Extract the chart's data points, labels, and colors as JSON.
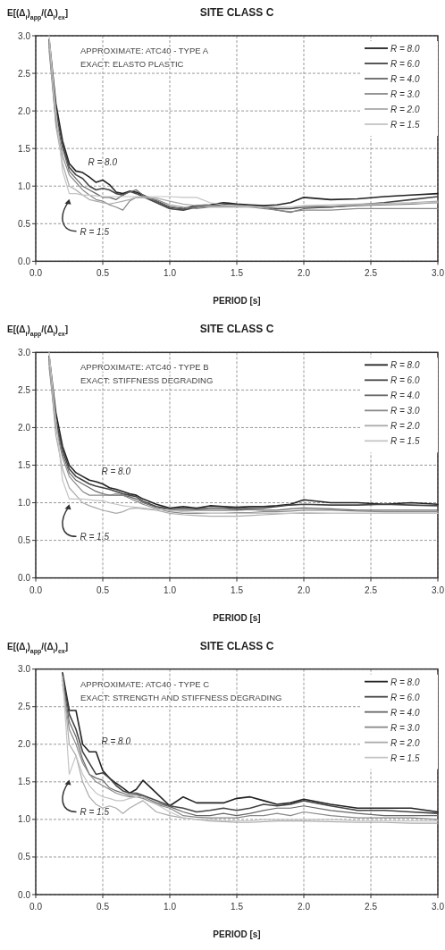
{
  "chart_data": [
    {
      "type": "line",
      "title": "SITE CLASS C",
      "xlabel": "PERIOD [s]",
      "ylabel": "E[(Δ$_{i}$)$_{app}$/(Δ$_{i}$)$_{ex}$]",
      "xlim": [
        0,
        3
      ],
      "ylim": [
        0,
        3
      ],
      "xticks": [
        {
          "value": 0,
          "label": "0.0"
        },
        {
          "value": 0.5,
          "label": "0.5"
        },
        {
          "value": 1,
          "label": "1.0"
        },
        {
          "value": 1.5,
          "label": "1.5"
        },
        {
          "value": 2,
          "label": "2.0"
        },
        {
          "value": 2.5,
          "label": "2.5"
        },
        {
          "value": 3,
          "label": "3.0"
        }
      ],
      "yticks": [
        {
          "value": 0,
          "label": "0.0"
        },
        {
          "value": 0.5,
          "label": "0.5"
        },
        {
          "value": 1,
          "label": "1.0"
        },
        {
          "value": 1.5,
          "label": "1.5"
        },
        {
          "value": 2,
          "label": "2.0"
        },
        {
          "value": 2.5,
          "label": "2.5"
        },
        {
          "value": 3,
          "label": "3.0"
        }
      ],
      "grid": true,
      "legend": "top right",
      "line_style": "solid",
      "annotations": [
        "APPROXIMATE: ATC40 - TYPE A",
        "EXACT: ELASTO PLASTIC",
        {
          "text": "R = 8.0",
          "x": 0.35,
          "y": 1.18
        },
        {
          "text": "R = 1.5",
          "x": 0.25,
          "y": 0.9
        }
      ],
      "x": [
        0.1,
        0.15,
        0.2,
        0.25,
        0.3,
        0.35,
        0.4,
        0.45,
        0.5,
        0.55,
        0.6,
        0.65,
        0.7,
        0.75,
        0.8,
        0.9,
        1.0,
        1.1,
        1.2,
        1.3,
        1.4,
        1.5,
        1.6,
        1.7,
        1.8,
        1.9,
        2.0,
        2.2,
        2.4,
        2.6,
        2.8,
        3.0
      ],
      "series": [
        {
          "name": "R = 8.0",
          "color": "#222222",
          "values": [
            2.95,
            2.1,
            1.6,
            1.3,
            1.2,
            1.18,
            1.12,
            1.05,
            1.08,
            1.02,
            0.92,
            0.9,
            0.93,
            0.92,
            0.88,
            0.8,
            0.72,
            0.7,
            0.74,
            0.75,
            0.78,
            0.76,
            0.75,
            0.74,
            0.75,
            0.78,
            0.85,
            0.82,
            0.83,
            0.86,
            0.88,
            0.9
          ]
        },
        {
          "name": "R = 6.0",
          "color": "#444444",
          "values": [
            2.9,
            2.0,
            1.55,
            1.25,
            1.15,
            1.1,
            1.0,
            0.95,
            0.97,
            0.95,
            0.9,
            0.88,
            0.93,
            0.9,
            0.86,
            0.78,
            0.7,
            0.68,
            0.72,
            0.74,
            0.76,
            0.75,
            0.74,
            0.72,
            0.7,
            0.7,
            0.72,
            0.72,
            0.75,
            0.78,
            0.82,
            0.86
          ]
        },
        {
          "name": "R = 4.0",
          "color": "#666666",
          "values": [
            2.85,
            1.9,
            1.5,
            1.2,
            1.1,
            1.0,
            0.95,
            0.9,
            0.85,
            0.85,
            0.82,
            0.88,
            0.92,
            0.95,
            0.88,
            0.8,
            0.72,
            0.7,
            0.72,
            0.74,
            0.74,
            0.74,
            0.73,
            0.72,
            0.68,
            0.65,
            0.7,
            0.72,
            0.74,
            0.75,
            0.76,
            0.78
          ]
        },
        {
          "name": "R = 3.0",
          "color": "#888888",
          "values": [
            2.8,
            1.85,
            1.4,
            1.15,
            1.05,
            0.95,
            0.88,
            0.82,
            0.8,
            0.75,
            0.72,
            0.68,
            0.8,
            0.85,
            0.85,
            0.82,
            0.75,
            0.72,
            0.7,
            0.72,
            0.72,
            0.72,
            0.72,
            0.7,
            0.68,
            0.66,
            0.68,
            0.68,
            0.7,
            0.7,
            0.7,
            0.7
          ]
        },
        {
          "name": "R = 2.0",
          "color": "#aaaaaa",
          "values": [
            2.9,
            1.8,
            1.3,
            1.0,
            0.95,
            0.88,
            0.82,
            0.8,
            0.78,
            0.76,
            0.78,
            0.8,
            0.82,
            0.85,
            0.85,
            0.84,
            0.8,
            0.76,
            0.74,
            0.74,
            0.73,
            0.73,
            0.72,
            0.72,
            0.72,
            0.72,
            0.74,
            0.75,
            0.76,
            0.77,
            0.78,
            0.8
          ]
        },
        {
          "name": "R = 1.5",
          "color": "#c4c4c4",
          "values": [
            3.0,
            2.0,
            1.2,
            0.9,
            0.9,
            0.88,
            0.88,
            0.87,
            0.86,
            0.86,
            0.86,
            0.86,
            0.86,
            0.86,
            0.86,
            0.86,
            0.86,
            0.85,
            0.85,
            0.78,
            0.75,
            0.74,
            0.73,
            0.72,
            0.72,
            0.72,
            0.73,
            0.74,
            0.75,
            0.76,
            0.77,
            0.78
          ]
        }
      ]
    },
    {
      "type": "line",
      "title": "SITE CLASS C",
      "xlabel": "PERIOD [s]",
      "ylabel": "E[(Δ$_{i}$)$_{app}$/(Δ$_{i}$)$_{ex}$]",
      "xlim": [
        0,
        3
      ],
      "ylim": [
        0,
        3
      ],
      "xticks": [
        {
          "value": 0,
          "label": "0.0"
        },
        {
          "value": 0.5,
          "label": "0.5"
        },
        {
          "value": 1,
          "label": "1.0"
        },
        {
          "value": 1.5,
          "label": "1.5"
        },
        {
          "value": 2,
          "label": "2.0"
        },
        {
          "value": 2.5,
          "label": "2.5"
        },
        {
          "value": 3,
          "label": "3.0"
        }
      ],
      "yticks": [
        {
          "value": 0,
          "label": "0.0"
        },
        {
          "value": 0.5,
          "label": "0.5"
        },
        {
          "value": 1,
          "label": "1.0"
        },
        {
          "value": 1.5,
          "label": "1.5"
        },
        {
          "value": 2,
          "label": "2.0"
        },
        {
          "value": 2.5,
          "label": "2.5"
        },
        {
          "value": 3,
          "label": "3.0"
        }
      ],
      "grid": true,
      "legend": "top right",
      "line_style": "solid",
      "annotations": [
        "APPROXIMATE: ATC40 - TYPE B",
        "EXACT: STIFFNESS DEGRADING",
        {
          "text": "R = 8.0",
          "x": 0.45,
          "y": 1.28
        },
        {
          "text": "R = 1.5",
          "x": 0.25,
          "y": 1.05
        }
      ],
      "x": [
        0.1,
        0.15,
        0.2,
        0.25,
        0.3,
        0.35,
        0.4,
        0.45,
        0.5,
        0.55,
        0.6,
        0.65,
        0.7,
        0.75,
        0.8,
        0.9,
        1.0,
        1.1,
        1.2,
        1.3,
        1.4,
        1.5,
        1.6,
        1.7,
        1.8,
        1.9,
        2.0,
        2.2,
        2.4,
        2.6,
        2.8,
        3.0
      ],
      "series": [
        {
          "name": "R = 8.0",
          "color": "#222222",
          "values": [
            2.95,
            2.2,
            1.75,
            1.5,
            1.4,
            1.35,
            1.3,
            1.28,
            1.25,
            1.2,
            1.18,
            1.15,
            1.12,
            1.1,
            1.05,
            0.98,
            0.93,
            0.95,
            0.93,
            0.96,
            0.95,
            0.94,
            0.95,
            0.95,
            0.96,
            0.98,
            1.04,
            1.0,
            1.0,
            0.98,
            1.0,
            0.98
          ]
        },
        {
          "name": "R = 6.0",
          "color": "#444444",
          "values": [
            2.9,
            2.1,
            1.7,
            1.45,
            1.35,
            1.3,
            1.25,
            1.22,
            1.2,
            1.18,
            1.15,
            1.12,
            1.1,
            1.08,
            1.02,
            0.95,
            0.92,
            0.93,
            0.92,
            0.93,
            0.93,
            0.92,
            0.93,
            0.93,
            0.95,
            0.97,
            0.98,
            0.97,
            0.97,
            0.98,
            0.97,
            0.96
          ]
        },
        {
          "name": "R = 4.0",
          "color": "#666666",
          "values": [
            2.85,
            2.05,
            1.65,
            1.4,
            1.3,
            1.25,
            1.2,
            1.15,
            1.12,
            1.1,
            1.1,
            1.1,
            1.08,
            1.05,
            1.0,
            0.94,
            0.9,
            0.9,
            0.9,
            0.9,
            0.9,
            0.9,
            0.91,
            0.9,
            0.9,
            0.92,
            0.93,
            0.92,
            0.9,
            0.9,
            0.9,
            0.9
          ]
        },
        {
          "name": "R = 3.0",
          "color": "#888888",
          "values": [
            2.8,
            2.0,
            1.6,
            1.35,
            1.25,
            1.15,
            1.1,
            1.1,
            1.1,
            1.1,
            1.12,
            1.1,
            1.06,
            1.02,
            0.98,
            0.92,
            0.88,
            0.86,
            0.86,
            0.86,
            0.86,
            0.87,
            0.87,
            0.88,
            0.88,
            0.89,
            0.9,
            0.9,
            0.89,
            0.88,
            0.88,
            0.88
          ]
        },
        {
          "name": "R = 2.0",
          "color": "#aaaaaa",
          "values": [
            2.9,
            1.9,
            1.45,
            1.2,
            1.1,
            1.0,
            0.96,
            0.93,
            0.9,
            0.88,
            0.86,
            0.88,
            0.92,
            0.93,
            0.92,
            0.9,
            0.86,
            0.84,
            0.83,
            0.82,
            0.82,
            0.82,
            0.83,
            0.84,
            0.85,
            0.86,
            0.86,
            0.86,
            0.86,
            0.86,
            0.86,
            0.86
          ]
        },
        {
          "name": "R = 1.5",
          "color": "#c4c4c4",
          "values": [
            3.0,
            2.1,
            1.3,
            1.05,
            1.05,
            1.05,
            1.04,
            1.03,
            1.03,
            1.0,
            0.98,
            0.96,
            0.95,
            0.94,
            0.93,
            0.91,
            0.9,
            0.88,
            0.87,
            0.86,
            0.86,
            0.86,
            0.86,
            0.86,
            0.86,
            0.86,
            0.87,
            0.86,
            0.86,
            0.86,
            0.86,
            0.86
          ]
        }
      ]
    },
    {
      "type": "line",
      "title": "SITE CLASS C",
      "xlabel": "PERIOD [s]",
      "ylabel": "E[(Δ$_{i}$)$_{app}$/(Δ$_{i}$)$_{ex}$]",
      "xlim": [
        0,
        3
      ],
      "ylim": [
        0,
        3
      ],
      "xticks": [
        {
          "value": 0,
          "label": "0.0"
        },
        {
          "value": 0.5,
          "label": "0.5"
        },
        {
          "value": 1,
          "label": "1.0"
        },
        {
          "value": 1.5,
          "label": "1.5"
        },
        {
          "value": 2,
          "label": "2.0"
        },
        {
          "value": 2.5,
          "label": "2.5"
        },
        {
          "value": 3,
          "label": "3.0"
        }
      ],
      "yticks": [
        {
          "value": 0,
          "label": "0.0"
        },
        {
          "value": 0.5,
          "label": "0.5"
        },
        {
          "value": 1,
          "label": "1.0"
        },
        {
          "value": 1.5,
          "label": "1.5"
        },
        {
          "value": 2,
          "label": "2.0"
        },
        {
          "value": 2.5,
          "label": "2.5"
        },
        {
          "value": 3,
          "label": "3.0"
        }
      ],
      "grid": true,
      "legend": "top right",
      "line_style": "solid",
      "annotations": [
        "APPROXIMATE: ATC40 - TYPE C",
        "EXACT: STRENGTH AND STIFFNESS DEGRADING",
        {
          "text": "R = 8.0",
          "x": 0.45,
          "y": 1.9
        },
        {
          "text": "R = 1.5",
          "x": 0.25,
          "y": 1.6
        }
      ],
      "x": [
        0.2,
        0.25,
        0.3,
        0.35,
        0.4,
        0.45,
        0.5,
        0.55,
        0.6,
        0.65,
        0.7,
        0.75,
        0.8,
        0.9,
        1.0,
        1.1,
        1.2,
        1.3,
        1.4,
        1.5,
        1.6,
        1.7,
        1.8,
        1.9,
        2.0,
        2.2,
        2.4,
        2.6,
        2.8,
        3.0
      ],
      "series": [
        {
          "name": "R = 8.0",
          "color": "#222222",
          "values": [
            2.95,
            2.45,
            2.45,
            2.0,
            1.9,
            1.9,
            1.65,
            1.55,
            1.48,
            1.42,
            1.35,
            1.4,
            1.52,
            1.35,
            1.18,
            1.3,
            1.22,
            1.22,
            1.22,
            1.28,
            1.3,
            1.25,
            1.2,
            1.22,
            1.27,
            1.2,
            1.15,
            1.15,
            1.15,
            1.1
          ]
        },
        {
          "name": "R = 6.0",
          "color": "#444444",
          "values": [
            2.9,
            2.4,
            2.2,
            1.9,
            1.75,
            1.6,
            1.62,
            1.55,
            1.45,
            1.38,
            1.35,
            1.35,
            1.32,
            1.25,
            1.18,
            1.15,
            1.1,
            1.12,
            1.15,
            1.12,
            1.15,
            1.2,
            1.18,
            1.2,
            1.25,
            1.18,
            1.12,
            1.12,
            1.1,
            1.08
          ]
        },
        {
          "name": "R = 4.0",
          "color": "#666666",
          "values": [
            2.85,
            2.3,
            2.1,
            1.8,
            1.6,
            1.55,
            1.52,
            1.42,
            1.38,
            1.35,
            1.32,
            1.33,
            1.3,
            1.22,
            1.17,
            1.1,
            1.05,
            1.05,
            1.08,
            1.05,
            1.08,
            1.12,
            1.15,
            1.15,
            1.18,
            1.12,
            1.08,
            1.05,
            1.05,
            1.05
          ]
        },
        {
          "name": "R = 3.0",
          "color": "#888888",
          "values": [
            2.8,
            2.2,
            2.0,
            1.75,
            1.6,
            1.5,
            1.45,
            1.4,
            1.35,
            1.32,
            1.3,
            1.3,
            1.28,
            1.2,
            1.15,
            1.05,
            1.03,
            1.02,
            1.02,
            1.02,
            1.05,
            1.05,
            1.08,
            1.05,
            1.1,
            1.05,
            1.02,
            1.02,
            1.02,
            1.0
          ]
        },
        {
          "name": "R = 2.0",
          "color": "#aaaaaa",
          "values": [
            2.9,
            2.0,
            1.85,
            1.5,
            1.3,
            1.2,
            1.15,
            1.18,
            1.15,
            1.08,
            1.15,
            1.2,
            1.25,
            1.1,
            1.05,
            1.02,
            1.0,
            0.98,
            0.97,
            0.96,
            0.96,
            0.97,
            0.98,
            0.98,
            0.98,
            0.97,
            0.96,
            0.96,
            0.95,
            0.95
          ]
        },
        {
          "name": "R = 1.5",
          "color": "#c4c4c4",
          "values": [
            2.9,
            1.6,
            1.85,
            1.6,
            1.45,
            1.35,
            1.3,
            1.28,
            1.25,
            1.25,
            1.28,
            1.3,
            1.3,
            1.2,
            1.1,
            1.02,
            1.0,
            1.0,
            0.98,
            0.98,
            0.98,
            1.0,
            1.0,
            1.0,
            1.0,
            1.0,
            0.98,
            0.98,
            0.98,
            0.98
          ]
        }
      ]
    }
  ]
}
